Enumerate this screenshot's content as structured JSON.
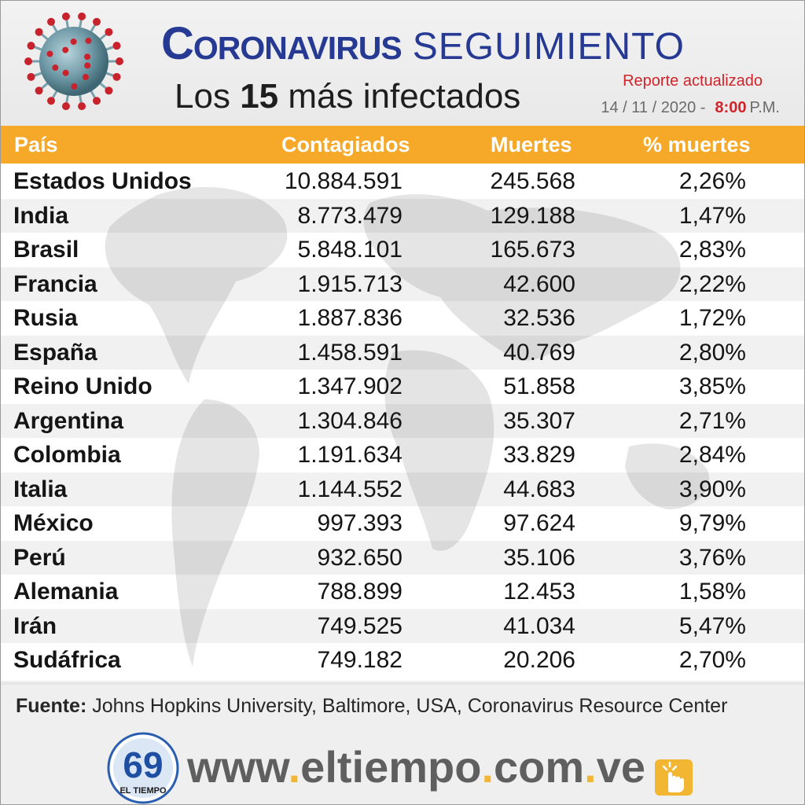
{
  "header": {
    "title_main": "Coronavirus",
    "title_sub": "SEGUIMIENTO",
    "subtitle_prefix": "Los",
    "subtitle_number": "15",
    "subtitle_suffix": "más infectados",
    "report_label": "Reporte actualizado",
    "report_date": "14 / 11 / 2020 -",
    "report_time": "8:00",
    "report_ampm": "P.M."
  },
  "table": {
    "headers": [
      "País",
      "Contagiados",
      "Muertes",
      "% muertes"
    ],
    "rows": [
      {
        "country": "Estados Unidos",
        "cases": "10.884.591",
        "deaths": "245.568",
        "pct": "2,26%"
      },
      {
        "country": "India",
        "cases": "8.773.479",
        "deaths": "129.188",
        "pct": "1,47%"
      },
      {
        "country": "Brasil",
        "cases": "5.848.101",
        "deaths": "165.673",
        "pct": "2,83%"
      },
      {
        "country": "Francia",
        "cases": "1.915.713",
        "deaths": "42.600",
        "pct": "2,22%"
      },
      {
        "country": "Rusia",
        "cases": "1.887.836",
        "deaths": "32.536",
        "pct": "1,72%"
      },
      {
        "country": "España",
        "cases": "1.458.591",
        "deaths": "40.769",
        "pct": "2,80%"
      },
      {
        "country": "Reino Unido",
        "cases": "1.347.902",
        "deaths": "51.858",
        "pct": "3,85%"
      },
      {
        "country": "Argentina",
        "cases": "1.304.846",
        "deaths": "35.307",
        "pct": "2,71%"
      },
      {
        "country": "Colombia",
        "cases": "1.191.634",
        "deaths": "33.829",
        "pct": "2,84%"
      },
      {
        "country": "Italia",
        "cases": "1.144.552",
        "deaths": "44.683",
        "pct": "3,90%"
      },
      {
        "country": "México",
        "cases": "997.393",
        "deaths": "97.624",
        "pct": "9,79%"
      },
      {
        "country": "Perú",
        "cases": "932.650",
        "deaths": "35.106",
        "pct": "3,76%"
      },
      {
        "country": "Alemania",
        "cases": "788.899",
        "deaths": "12.453",
        "pct": "1,58%"
      },
      {
        "country": "Irán",
        "cases": "749.525",
        "deaths": "41.034",
        "pct": "5,47%"
      },
      {
        "country": "Sudáfrica",
        "cases": "749.182",
        "deaths": "20.206",
        "pct": "2,70%"
      }
    ]
  },
  "source": {
    "label": "Fuente:",
    "text": "Johns Hopkins University, Baltimore, USA, Coronavirus Resource Center"
  },
  "footer": {
    "website_parts": [
      "www",
      ".",
      "eltiempo",
      ".",
      "com",
      ".",
      "ve"
    ],
    "logo_number": "69",
    "logo_text": "EL TIEMPO"
  },
  "colors": {
    "title_blue": "#273a93",
    "header_orange": "#f6a928",
    "report_red": "#d0232a",
    "website_dot": "#f2b632"
  },
  "icons": [
    "coronavirus-illustration",
    "world-map-watermark",
    "el-tiempo-logo",
    "hand-pointer-icon"
  ]
}
